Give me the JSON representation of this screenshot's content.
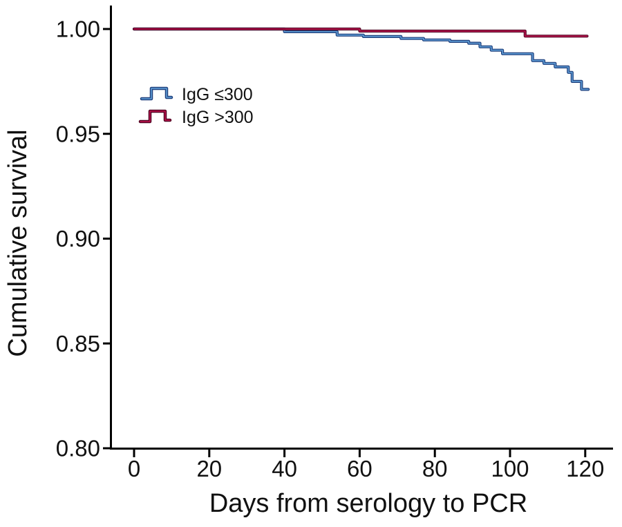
{
  "colors": {
    "background": "#ffffff",
    "axis": "#000000",
    "text": "#111111"
  },
  "chart_data": {
    "type": "line",
    "subtype": "kaplan-meier-step",
    "title": "",
    "xlabel": "Days from serology to PCR",
    "ylabel": "Cumulative survival",
    "xlim": [
      0,
      125
    ],
    "ylim": [
      0.8,
      1.005
    ],
    "x_ticks": [
      0,
      20,
      40,
      60,
      80,
      100,
      120
    ],
    "x_tick_labels": [
      "0",
      "20",
      "40",
      "60",
      "80",
      "100",
      "120"
    ],
    "y_ticks": [
      1.0,
      0.95,
      0.9,
      0.85,
      0.8
    ],
    "y_tick_labels": [
      "1.00",
      "0.95",
      "0.90",
      "0.85",
      "0.80"
    ],
    "grid": false,
    "legend_position": "inside-upper-left",
    "series": [
      {
        "name": "IgG ≤300",
        "color": "#5b96cf",
        "edge_color": "#1e3f7c",
        "end_day": 120.8,
        "points": [
          [
            0,
            1.0
          ],
          [
            40,
            0.9987
          ],
          [
            54,
            0.9971
          ],
          [
            61,
            0.9964
          ],
          [
            71,
            0.9955
          ],
          [
            77,
            0.9948
          ],
          [
            84,
            0.9941
          ],
          [
            89,
            0.9932
          ],
          [
            92,
            0.9915
          ],
          [
            95,
            0.9899
          ],
          [
            98,
            0.9882
          ],
          [
            106,
            0.9849
          ],
          [
            109,
            0.9836
          ],
          [
            112,
            0.9819
          ],
          [
            115.5,
            0.9793
          ],
          [
            116.5,
            0.975
          ],
          [
            119,
            0.9712
          ]
        ]
      },
      {
        "name": "IgG >300",
        "color": "#b5124a",
        "edge_color": "#4f0020",
        "end_day": 120.5,
        "points": [
          [
            0,
            1.0
          ],
          [
            60,
            0.999
          ],
          [
            104,
            0.9966
          ]
        ]
      }
    ]
  }
}
